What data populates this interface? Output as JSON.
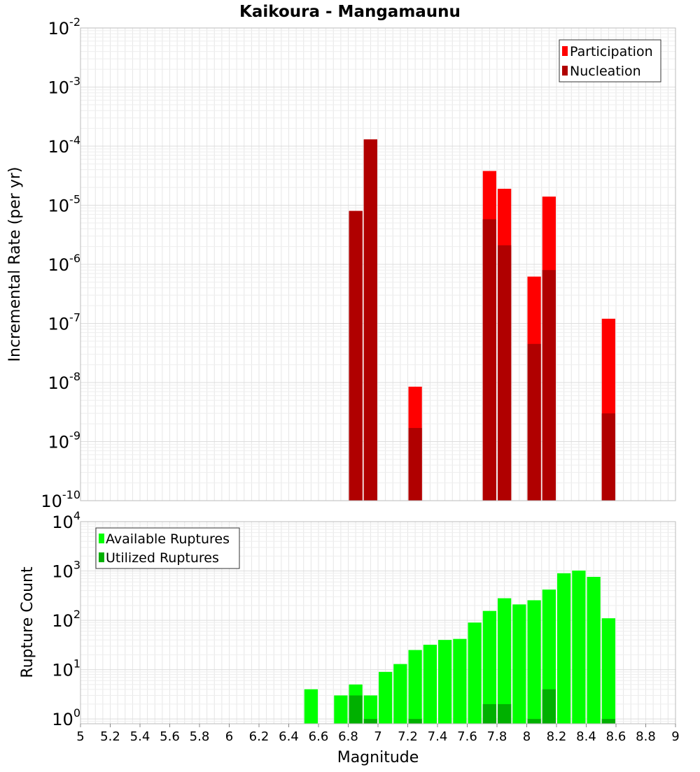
{
  "title": "Kaikoura - Mangamaunu",
  "colors": {
    "participation": "#ff0000",
    "nucleation": "#b00000",
    "available": "#00ff00",
    "utilized": "#00b000",
    "grid": "#e6e6e6",
    "frame": "#bbbbbb"
  },
  "chart_data": [
    {
      "type": "bar",
      "title": "Kaikoura - Mangamaunu",
      "xlabel": "",
      "ylabel": "Incremental Rate (per yr)",
      "yscale": "log",
      "xlim": [
        5,
        9
      ],
      "ylim": [
        1e-10,
        0.01
      ],
      "grid": true,
      "legend_position": "top-right",
      "y_tick_exponents": [
        -2,
        -3,
        -4,
        -5,
        -6,
        -7,
        -8,
        -9,
        -10
      ],
      "bar_width": 0.1,
      "series": [
        {
          "name": "Participation",
          "color": "#ff0000",
          "points": [
            [
              6.85,
              8e-06
            ],
            [
              6.95,
              0.00013
            ],
            [
              7.25,
              8.5e-09
            ],
            [
              7.75,
              3.8e-05
            ],
            [
              7.85,
              1.9e-05
            ],
            [
              8.05,
              6.2e-07
            ],
            [
              8.15,
              1.4e-05
            ],
            [
              8.55,
              1.2e-07
            ]
          ]
        },
        {
          "name": "Nucleation",
          "color": "#b00000",
          "points": [
            [
              6.85,
              8e-06
            ],
            [
              6.95,
              0.00013
            ],
            [
              7.25,
              1.7e-09
            ],
            [
              7.75,
              5.8e-06
            ],
            [
              7.85,
              2.1e-06
            ],
            [
              8.05,
              4.5e-08
            ],
            [
              8.15,
              8e-07
            ],
            [
              8.55,
              3e-09
            ]
          ]
        }
      ]
    },
    {
      "type": "bar",
      "xlabel": "Magnitude",
      "ylabel": "Rupture Count",
      "yscale": "log",
      "xlim": [
        5,
        9
      ],
      "ylim": [
        0.8,
        10000
      ],
      "grid": true,
      "legend_position": "top-left",
      "x_ticks": [
        "5",
        "5.2",
        "5.4",
        "5.6",
        "5.8",
        "6",
        "6.2",
        "6.4",
        "6.6",
        "6.8",
        "7",
        "7.2",
        "7.4",
        "7.6",
        "7.8",
        "8",
        "8.2",
        "8.4",
        "8.6",
        "8.8",
        "9"
      ],
      "y_tick_exponents": [
        4,
        3,
        2,
        1,
        0
      ],
      "bar_width": 0.1,
      "series": [
        {
          "name": "Available Ruptures",
          "color": "#00ff00",
          "points": [
            [
              6.55,
              4
            ],
            [
              6.75,
              3
            ],
            [
              6.85,
              5
            ],
            [
              6.95,
              3
            ],
            [
              7.05,
              9
            ],
            [
              7.15,
              13
            ],
            [
              7.25,
              25
            ],
            [
              7.35,
              32
            ],
            [
              7.45,
              40
            ],
            [
              7.55,
              42
            ],
            [
              7.65,
              90
            ],
            [
              7.75,
              155
            ],
            [
              7.85,
              280
            ],
            [
              7.95,
              210
            ],
            [
              8.05,
              255
            ],
            [
              8.15,
              420
            ],
            [
              8.25,
              900
            ],
            [
              8.35,
              1020
            ],
            [
              8.45,
              760
            ],
            [
              8.55,
              110
            ]
          ]
        },
        {
          "name": "Utilized Ruptures",
          "color": "#00b000",
          "points": [
            [
              6.85,
              3
            ],
            [
              6.95,
              1
            ],
            [
              7.25,
              1
            ],
            [
              7.75,
              2
            ],
            [
              7.85,
              2
            ],
            [
              8.05,
              1
            ],
            [
              8.15,
              4
            ],
            [
              8.55,
              1
            ]
          ]
        }
      ]
    }
  ]
}
